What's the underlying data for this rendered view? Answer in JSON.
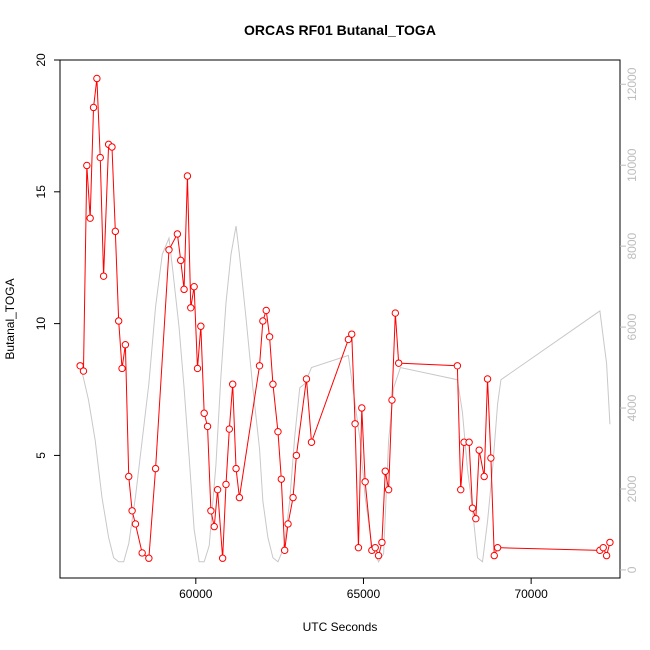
{
  "chart_data": {
    "type": "line",
    "title": "ORCAS RF01 Butanal_TOGA",
    "xlabel": "UTC Seconds",
    "ylabel": "Butanal_TOGA",
    "xlim": [
      55950,
      72650
    ],
    "ylim": [
      0.35,
      20
    ],
    "y2lim": [
      -200,
      12600
    ],
    "x_ticks": [
      60000,
      65000,
      70000
    ],
    "x_tick_labels": [
      "60000",
      "65000",
      "70000"
    ],
    "y_ticks": [
      5,
      10,
      15,
      20
    ],
    "y_tick_labels": [
      "5",
      "10",
      "15",
      "20"
    ],
    "y2_ticks": [
      0,
      2000,
      4000,
      6000,
      8000,
      10000,
      12000
    ],
    "y2_tick_labels": [
      "0",
      "2000",
      "4000",
      "6000",
      "8000",
      "10000",
      "12000"
    ],
    "grid": false,
    "legend": "none",
    "colors": {
      "series": "#ff0000",
      "background_series": "#c8c8c8"
    },
    "series": [
      {
        "axis": "left",
        "marker": "open-circle",
        "x": [
          56550,
          56650,
          56750,
          56850,
          56950,
          57050,
          57150,
          57250,
          57400,
          57500,
          57600,
          57700,
          57800,
          57900,
          58000,
          58100,
          58200,
          58400,
          58600,
          58800,
          59200,
          59450,
          59550,
          59650,
          59750,
          59850,
          59950,
          60050,
          60150,
          60250,
          60350,
          60450,
          60550,
          60650,
          60800,
          60900,
          61000,
          61100,
          61200,
          61300,
          61900,
          62000,
          62100,
          62200,
          62300,
          62450,
          62550,
          62650,
          62750,
          62900,
          63000,
          63300,
          63450,
          64550,
          64650,
          64750,
          64850,
          64950,
          65050,
          65250,
          65350,
          65450,
          65550,
          65650,
          65750,
          65850,
          65950,
          66050,
          67800,
          67900,
          68000,
          68150,
          68250,
          68350,
          68450,
          68600,
          68700,
          68800,
          68900,
          69000,
          72050,
          72150,
          72250,
          72350
        ],
        "y": [
          8.4,
          8.2,
          16.0,
          14.0,
          18.2,
          19.3,
          16.3,
          11.8,
          16.8,
          16.7,
          13.5,
          10.1,
          8.3,
          9.2,
          4.2,
          2.9,
          2.4,
          1.3,
          1.1,
          4.5,
          12.8,
          13.4,
          12.4,
          11.3,
          15.6,
          10.6,
          11.4,
          8.3,
          9.9,
          6.6,
          6.1,
          2.9,
          2.3,
          3.7,
          1.1,
          3.9,
          6.0,
          7.7,
          4.5,
          3.4,
          8.4,
          10.1,
          10.5,
          9.5,
          7.7,
          5.9,
          4.1,
          1.4,
          2.4,
          3.4,
          5.0,
          7.9,
          5.5,
          9.4,
          9.6,
          6.2,
          1.5,
          6.8,
          4.0,
          1.4,
          1.5,
          1.2,
          1.7,
          4.4,
          3.7,
          7.1,
          10.4,
          8.5,
          8.4,
          3.7,
          5.5,
          5.5,
          3.0,
          2.6,
          5.2,
          4.2,
          7.9,
          4.9,
          1.2,
          1.5,
          1.4,
          1.5,
          1.2,
          1.7
        ]
      },
      {
        "axis": "right",
        "marker": "none",
        "x": [
          56550,
          56800,
          57000,
          57200,
          57400,
          57550,
          57700,
          57850,
          58000,
          58200,
          58400,
          58600,
          58800,
          59000,
          59200,
          59300,
          59500,
          59650,
          59800,
          59950,
          60100,
          60250,
          60400,
          60600,
          60750,
          60900,
          61050,
          61200,
          61300,
          61500,
          61700,
          61900,
          62000,
          62150,
          62300,
          62450,
          62550,
          62650,
          62800,
          62950,
          63100,
          63250,
          63450,
          64550,
          64700,
          64900,
          65050,
          65250,
          65450,
          65600,
          65750,
          65900,
          66100,
          67800,
          67950,
          68100,
          68250,
          68400,
          68550,
          68700,
          68850,
          69000,
          69100,
          72050,
          72250,
          72350
        ],
        "y": [
          5100,
          4200,
          3200,
          1800,
          800,
          300,
          200,
          200,
          650,
          1800,
          3200,
          4600,
          6500,
          7800,
          8200,
          7500,
          6000,
          4500,
          2800,
          1000,
          200,
          200,
          600,
          2600,
          4800,
          6600,
          7800,
          8500,
          7800,
          6200,
          4500,
          3000,
          1700,
          800,
          300,
          200,
          400,
          700,
          1700,
          3300,
          4500,
          4600,
          5000,
          5300,
          4400,
          3200,
          1800,
          600,
          200,
          400,
          3200,
          4500,
          5000,
          4700,
          3900,
          2500,
          1500,
          300,
          200,
          1200,
          2500,
          4100,
          4700,
          6400,
          5100,
          3600
        ]
      }
    ]
  }
}
